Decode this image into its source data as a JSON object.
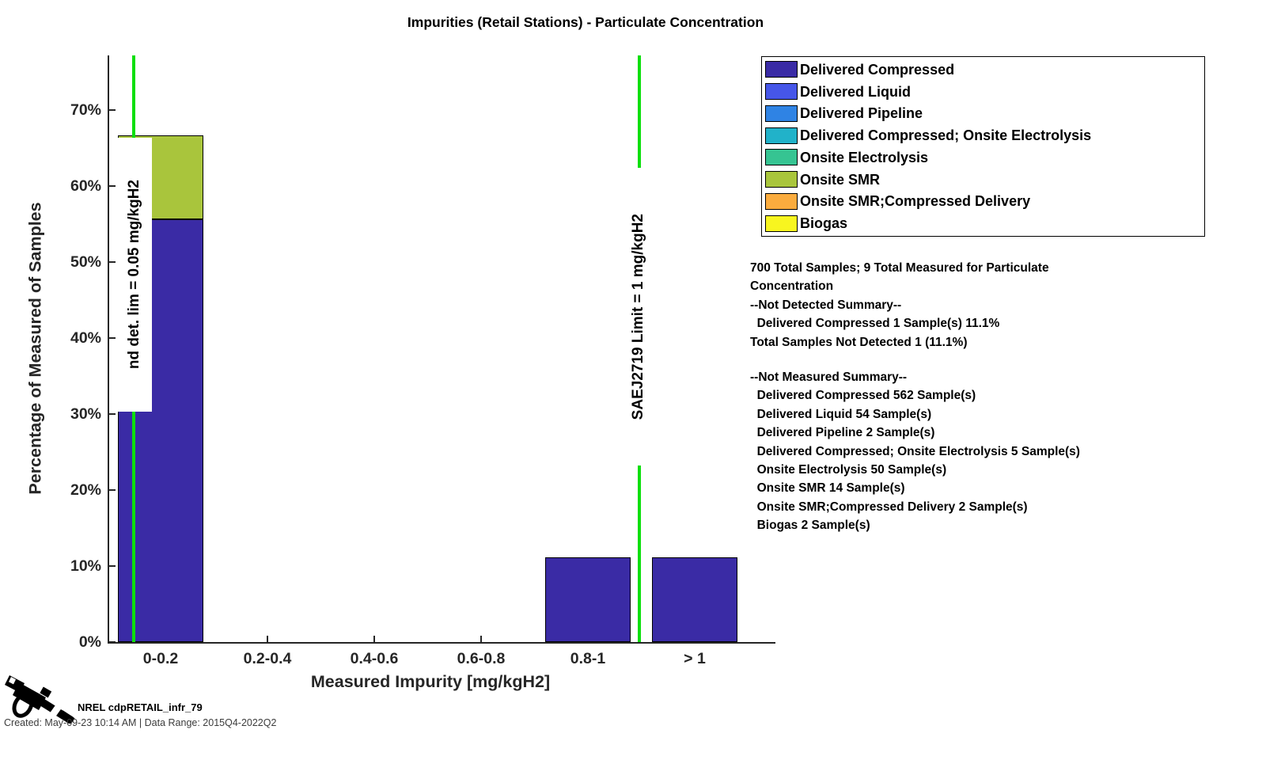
{
  "chart_data": {
    "type": "bar",
    "stacked": true,
    "title": "Impurities (Retail Stations) - Particulate Concentration",
    "xlabel": "Measured Impurity [mg/kgH2]",
    "ylabel": "Percentage of Measured of Samples",
    "categories": [
      "0-0.2",
      "0.2-0.4",
      "0.4-0.6",
      "0.6-0.8",
      "0.8-1",
      "> 1"
    ],
    "y_tick_labels": [
      "0%",
      "10%",
      "20%",
      "30%",
      "40%",
      "50%",
      "60%",
      "70%"
    ],
    "y_tick_values": [
      0,
      10,
      20,
      30,
      40,
      50,
      60,
      70
    ],
    "ylim": [
      0,
      77
    ],
    "grid": false,
    "legend_position": "upper-right-outside",
    "series": [
      {
        "name": "Delivered Compressed",
        "color": "#3A2BA5",
        "values": [
          55.6,
          0,
          0,
          0,
          11.1,
          11.1
        ]
      },
      {
        "name": "Delivered Liquid",
        "color": "#4656E8",
        "values": [
          0,
          0,
          0,
          0,
          0,
          0
        ]
      },
      {
        "name": "Delivered Pipeline",
        "color": "#2F83E4",
        "values": [
          0,
          0,
          0,
          0,
          0,
          0
        ]
      },
      {
        "name": "Delivered Compressed; Onsite Electrolysis",
        "color": "#21B2C9",
        "values": [
          0,
          0,
          0,
          0,
          0,
          0
        ]
      },
      {
        "name": "Onsite Electrolysis",
        "color": "#36C492",
        "values": [
          0,
          0,
          0,
          0,
          0,
          0
        ]
      },
      {
        "name": "Onsite SMR",
        "color": "#A9C53C",
        "values": [
          11.1,
          0,
          0,
          0,
          0,
          0
        ]
      },
      {
        "name": "Onsite SMR;Compressed Delivery",
        "color": "#FBAC3E",
        "values": [
          0,
          0,
          0,
          0,
          0,
          0
        ]
      },
      {
        "name": "Biogas",
        "color": "#F8F51F",
        "values": [
          0,
          0,
          0,
          0,
          0,
          0
        ]
      }
    ],
    "reference_lines": [
      {
        "label": "nd det. lim = 0.05 mg/kgH2",
        "value_mg_kgH2": 0.05,
        "color": "#0DDF0D"
      },
      {
        "label": "SAEJ2719 Limit = 1 mg/kgH2",
        "value_mg_kgH2": 1,
        "color": "#0DDF0D"
      }
    ]
  },
  "annotation": {
    "block1": [
      "700 Total Samples; 9 Total Measured for Particulate",
      "Concentration",
      "--Not Detected Summary--",
      "  Delivered Compressed 1 Sample(s) 11.1%",
      "Total Samples Not Detected 1 (11.1%)"
    ],
    "block2": [
      "--Not Measured Summary--",
      "  Delivered Compressed 562 Sample(s)",
      "  Delivered Liquid 54 Sample(s)",
      "  Delivered Pipeline 2 Sample(s)",
      "  Delivered Compressed; Onsite Electrolysis 5 Sample(s)",
      "  Onsite Electrolysis 50 Sample(s)",
      "  Onsite SMR 14 Sample(s)",
      "  Onsite SMR;Compressed Delivery 2 Sample(s)",
      "  Biogas 2 Sample(s)"
    ]
  },
  "footer": {
    "dataset_label": "NREL cdpRETAIL_infr_79",
    "created_line": "Created: May-09-23 10:14 AM | Data Range: 2015Q4-2022Q2"
  },
  "colors": {
    "axis": "#262626",
    "reference_green": "#0DDF0D"
  }
}
